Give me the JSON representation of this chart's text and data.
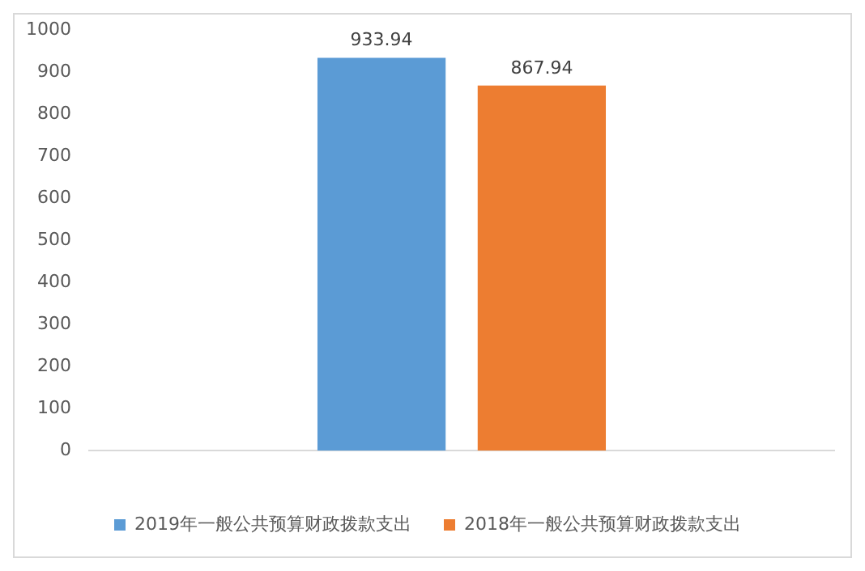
{
  "chart_data": {
    "type": "bar",
    "categories": [
      null
    ],
    "series": [
      {
        "name": "2019年一般公共预算财政拨款支出",
        "color": "#5b9bd5",
        "values": [
          933.94
        ]
      },
      {
        "name": "2018年一般公共预算财政拨款支出",
        "color": "#ed7d31",
        "values": [
          867.94
        ]
      }
    ],
    "ylim": [
      0,
      1000
    ],
    "yticks": [
      0,
      100,
      200,
      300,
      400,
      500,
      600,
      700,
      800,
      900,
      1000
    ],
    "data_labels": true,
    "legend": "bottom",
    "grid": false
  }
}
